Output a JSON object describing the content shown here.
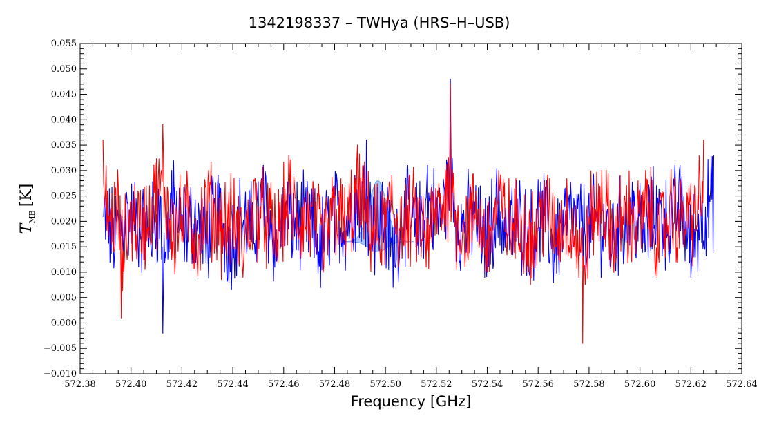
{
  "chart_data": {
    "type": "line",
    "title": "1342198337 – TWHya (HRS–H–USB)",
    "xlabel": "Frequency [GHz]",
    "ylabel": {
      "main": "T",
      "subscript": "MB",
      "unit": "[K]"
    },
    "xlim": [
      572.38,
      572.64
    ],
    "ylim": [
      -0.01,
      0.055
    ],
    "x_ticks": [
      "572.38",
      "572.40",
      "572.42",
      "572.44",
      "572.46",
      "572.48",
      "572.50",
      "572.52",
      "572.54",
      "572.56",
      "572.58",
      "572.60",
      "572.62",
      "572.64"
    ],
    "y_ticks": [
      "−0.010",
      "−0.005",
      "0.000",
      "0.005",
      "0.010",
      "0.015",
      "0.020",
      "0.025",
      "0.030",
      "0.035",
      "0.040",
      "0.045",
      "0.050",
      "0.055"
    ],
    "grid": false,
    "colors": {
      "series_blue": "#0000ff",
      "series_red": "#ff0000",
      "line_fit": "#6a9ff0",
      "background": "#ffffff"
    },
    "series": [
      {
        "color": "blue",
        "x": [
          572.389,
          572.3935,
          572.398,
          572.4025,
          572.407,
          572.4115,
          572.4125,
          572.416,
          572.4205,
          572.425,
          572.4295,
          572.434,
          572.4385,
          572.443,
          572.4475,
          572.452,
          572.4565,
          572.461,
          572.4655,
          572.47,
          572.4745,
          572.479,
          572.4835,
          572.488,
          572.4925,
          572.4955,
          572.4985,
          572.503,
          572.5075,
          572.512,
          572.5165,
          572.521,
          572.524,
          572.5255,
          572.527,
          572.53,
          572.5345,
          572.539,
          572.5435,
          572.548,
          572.5525,
          572.557,
          572.5615,
          572.566,
          572.5705,
          572.575,
          572.5795,
          572.584,
          572.5885,
          572.593,
          572.5975,
          572.602,
          572.6065,
          572.611,
          572.6155,
          572.62,
          572.6245,
          572.629
        ],
        "y": [
          0.021,
          0.013,
          0.024,
          0.019,
          0.015,
          0.025,
          -0.002,
          0.03,
          0.017,
          0.021,
          0.012,
          0.027,
          0.008,
          0.022,
          0.016,
          0.031,
          0.011,
          0.024,
          0.019,
          0.02,
          0.007,
          0.026,
          0.018,
          0.029,
          0.036,
          0.018,
          0.024,
          0.007,
          0.026,
          0.015,
          0.031,
          0.022,
          0.032,
          0.048,
          0.025,
          0.018,
          0.024,
          0.009,
          0.027,
          0.016,
          0.021,
          0.012,
          0.025,
          0.008,
          0.023,
          0.019,
          0.017,
          0.022,
          0.011,
          0.02,
          0.026,
          0.014,
          0.027,
          0.018,
          0.03,
          0.009,
          0.024,
          0.033
        ]
      },
      {
        "color": "red",
        "x": [
          572.389,
          572.3915,
          572.395,
          572.3962,
          572.4,
          572.4045,
          572.409,
          572.4125,
          572.417,
          572.4215,
          572.426,
          572.4305,
          572.435,
          572.4395,
          572.444,
          572.4485,
          572.453,
          572.4575,
          572.462,
          572.4665,
          572.471,
          572.4755,
          572.48,
          572.4845,
          572.489,
          572.4935,
          572.498,
          572.5025,
          572.507,
          572.5115,
          572.516,
          572.5205,
          572.5235,
          572.5255,
          572.5275,
          572.531,
          572.5355,
          572.54,
          572.5445,
          572.549,
          572.5535,
          572.558,
          572.5625,
          572.567,
          572.5715,
          572.576,
          572.5775,
          572.5805,
          572.585,
          572.5895,
          572.594,
          572.5985,
          572.603,
          572.6075,
          572.612,
          572.6165,
          572.621,
          572.625
        ],
        "y": [
          0.036,
          0.02,
          0.027,
          0.001,
          0.024,
          0.017,
          0.031,
          0.039,
          0.015,
          0.024,
          0.012,
          0.03,
          0.018,
          0.022,
          0.009,
          0.028,
          0.021,
          0.014,
          0.033,
          0.019,
          0.023,
          0.01,
          0.027,
          0.017,
          0.035,
          0.02,
          0.012,
          0.029,
          0.016,
          0.024,
          0.011,
          0.026,
          0.03,
          0.047,
          0.022,
          0.016,
          0.026,
          0.01,
          0.03,
          0.017,
          0.02,
          0.012,
          0.028,
          0.015,
          0.024,
          0.009,
          -0.004,
          0.022,
          0.03,
          0.014,
          0.025,
          0.019,
          0.028,
          0.012,
          0.026,
          0.02,
          0.024,
          0.036
        ]
      }
    ],
    "line_fit": {
      "center": 572.497,
      "peak": 0.028,
      "baseline": 0.016,
      "half_width": 0.0035
    }
  }
}
